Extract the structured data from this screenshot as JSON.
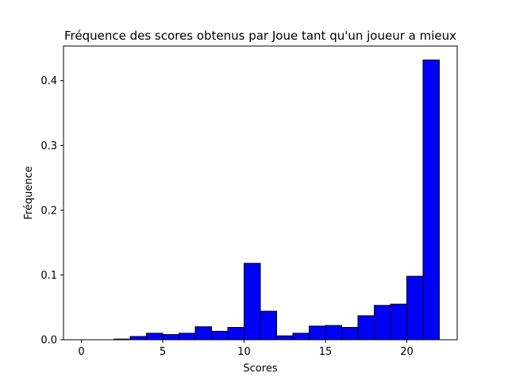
{
  "chart_data": {
    "type": "bar",
    "title": "Fréquence des scores obtenus par Joue tant qu'un joueur a mieux",
    "xlabel": "Scores",
    "ylabel": "Fréquence",
    "bar_color": "#0000ff",
    "edge_color": "#000000",
    "bin_width": 1,
    "xlim": [
      -1.1,
      23.1
    ],
    "ylim": [
      0,
      0.4536
    ],
    "xticks": [
      0,
      5,
      10,
      15,
      20
    ],
    "yticks": [
      0.0,
      0.1,
      0.2,
      0.3,
      0.4
    ],
    "ytick_labels": [
      "0.0",
      "0.1",
      "0.2",
      "0.3",
      "0.4"
    ],
    "bins": [
      {
        "start": 0,
        "value": 0.0
      },
      {
        "start": 1,
        "value": 0.0
      },
      {
        "start": 2,
        "value": 0.001
      },
      {
        "start": 3,
        "value": 0.005
      },
      {
        "start": 4,
        "value": 0.01
      },
      {
        "start": 5,
        "value": 0.008
      },
      {
        "start": 6,
        "value": 0.01
      },
      {
        "start": 7,
        "value": 0.02
      },
      {
        "start": 8,
        "value": 0.013
      },
      {
        "start": 9,
        "value": 0.019
      },
      {
        "start": 10,
        "value": 0.118
      },
      {
        "start": 11,
        "value": 0.044
      },
      {
        "start": 12,
        "value": 0.006
      },
      {
        "start": 13,
        "value": 0.01
      },
      {
        "start": 14,
        "value": 0.021
      },
      {
        "start": 15,
        "value": 0.022
      },
      {
        "start": 16,
        "value": 0.019
      },
      {
        "start": 17,
        "value": 0.037
      },
      {
        "start": 18,
        "value": 0.053
      },
      {
        "start": 19,
        "value": 0.055
      },
      {
        "start": 20,
        "value": 0.098
      },
      {
        "start": 21,
        "value": 0.432
      }
    ]
  }
}
